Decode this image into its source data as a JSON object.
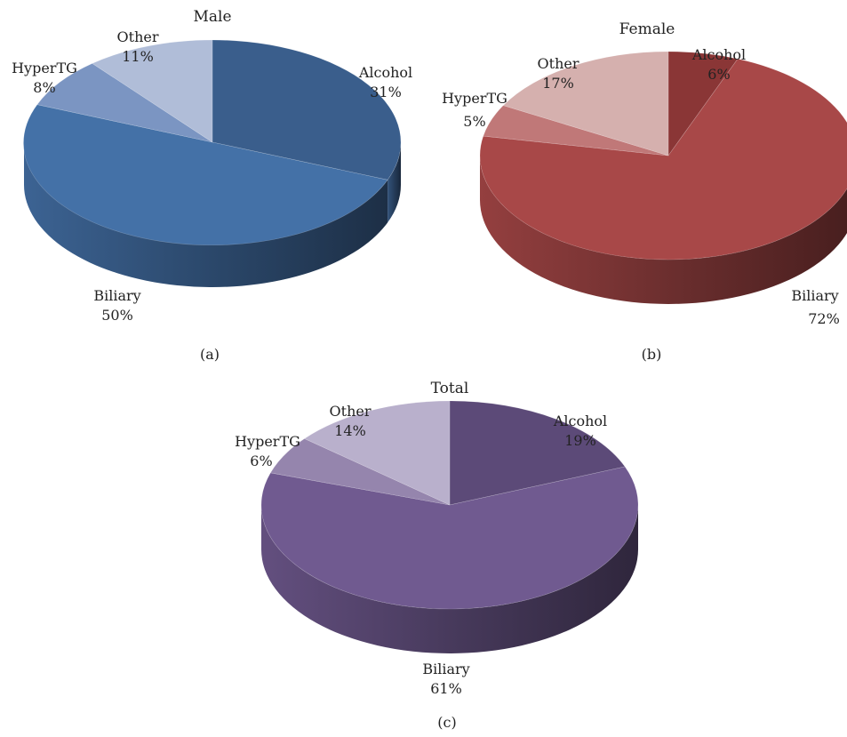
{
  "chart_data": [
    {
      "type": "pie",
      "panel": "(a)",
      "title": "Male",
      "slices": [
        {
          "name": "Alcohol",
          "value": 31,
          "label": "31%",
          "color": "#3a5e8c"
        },
        {
          "name": "Biliary",
          "value": 50,
          "label": "50%",
          "color": "#4471a7"
        },
        {
          "name": "HyperTG",
          "value": 8,
          "label": "8%",
          "color": "#7b95c2"
        },
        {
          "name": "Other",
          "value": 11,
          "label": "11%",
          "color": "#b0bdd8"
        }
      ]
    },
    {
      "type": "pie",
      "panel": "(b)",
      "title": "Female",
      "slices": [
        {
          "name": "Alcohol",
          "value": 6,
          "label": "6%",
          "color": "#8a3636"
        },
        {
          "name": "Biliary",
          "value": 72,
          "label": "72%",
          "color": "#a84848"
        },
        {
          "name": "HyperTG",
          "value": 5,
          "label": "5%",
          "color": "#c07878"
        },
        {
          "name": "Other",
          "value": 17,
          "label": "17%",
          "color": "#d5b0ae"
        }
      ]
    },
    {
      "type": "pie",
      "panel": "(c)",
      "title": "Total",
      "slices": [
        {
          "name": "Alcohol",
          "value": 19,
          "label": "19%",
          "color": "#5c4a78"
        },
        {
          "name": "Biliary",
          "value": 61,
          "label": "61%",
          "color": "#705a90"
        },
        {
          "name": "HyperTG",
          "value": 6,
          "label": "6%",
          "color": "#9585ad"
        },
        {
          "name": "Other",
          "value": 14,
          "label": "14%",
          "color": "#b9b0cc"
        }
      ]
    }
  ]
}
